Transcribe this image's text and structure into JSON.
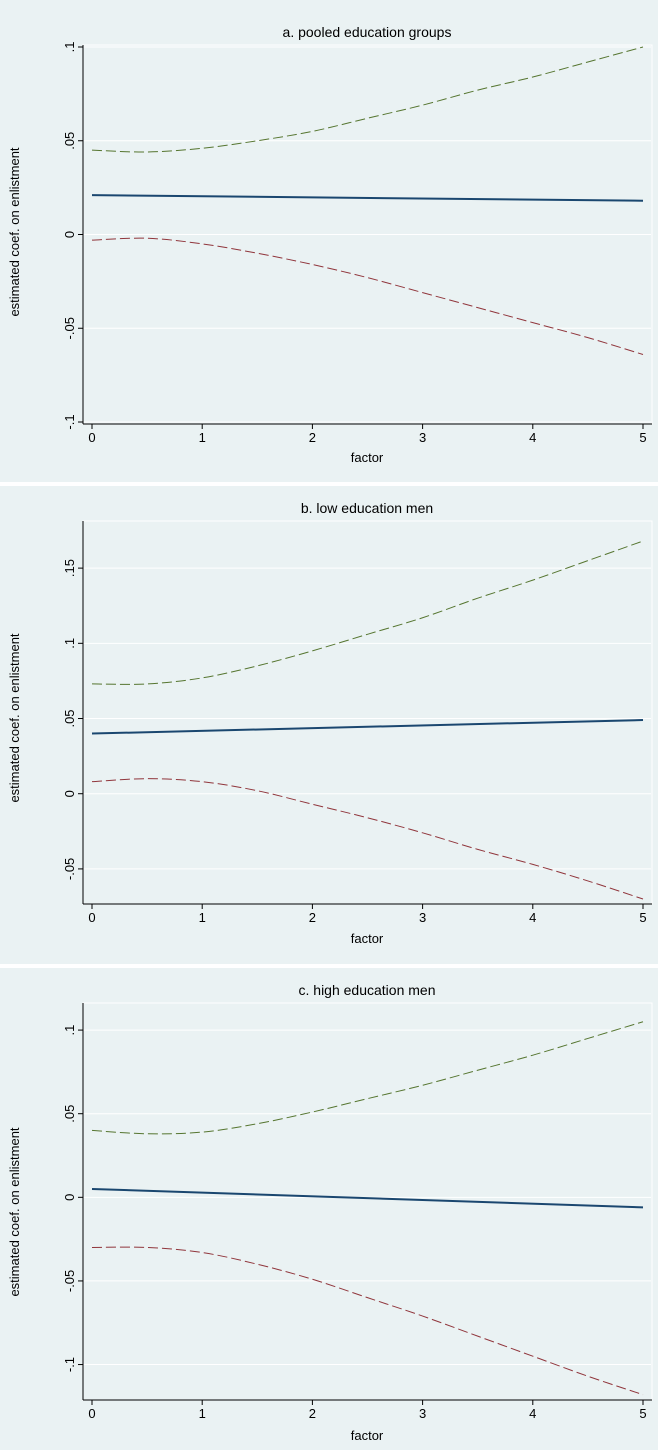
{
  "chart_data": [
    {
      "type": "line",
      "title": "a. pooled education groups",
      "xlabel": "factor",
      "ylabel": "estimated coef. on enlistment",
      "xlim": [
        0,
        5
      ],
      "ylim": [
        -0.1,
        0.1
      ],
      "xticks": [
        0,
        1,
        2,
        3,
        4,
        5
      ],
      "yticks": [
        -0.1,
        -0.05,
        0,
        0.05,
        0.1
      ],
      "ytick_labels": [
        "-.1",
        "-.05",
        "0",
        ".05",
        ".1"
      ],
      "grid": true,
      "colors": {
        "estimate": "#1a476f",
        "upper": "#55752f",
        "lower": "#90353b",
        "background": "#eaf2f3",
        "grid": "#ffffff"
      },
      "series": [
        {
          "role": "upper",
          "style": "dashed",
          "x": [
            0,
            0.5,
            1,
            1.5,
            2,
            2.5,
            3,
            3.5,
            4,
            4.5,
            5
          ],
          "values": [
            0.045,
            0.044,
            0.046,
            0.05,
            0.055,
            0.062,
            0.069,
            0.077,
            0.084,
            0.092,
            0.1
          ]
        },
        {
          "role": "estimate",
          "style": "solid",
          "x": [
            0,
            5
          ],
          "values": [
            0.021,
            0.018
          ]
        },
        {
          "role": "lower",
          "style": "dashed",
          "x": [
            0,
            0.5,
            1,
            1.5,
            2,
            2.5,
            3,
            3.5,
            4,
            4.5,
            5
          ],
          "values": [
            -0.003,
            -0.002,
            -0.005,
            -0.01,
            -0.016,
            -0.023,
            -0.031,
            -0.039,
            -0.047,
            -0.055,
            -0.064
          ]
        }
      ]
    },
    {
      "type": "line",
      "title": "b. low education men",
      "xlabel": "factor",
      "ylabel": "estimated coef. on enlistment",
      "xlim": [
        0,
        5
      ],
      "ylim": [
        -0.072,
        0.18
      ],
      "xticks": [
        0,
        1,
        2,
        3,
        4,
        5
      ],
      "yticks": [
        -0.05,
        0,
        0.05,
        0.1,
        0.15
      ],
      "ytick_labels": [
        "-.05",
        "0",
        ".05",
        ".1",
        ".15"
      ],
      "grid": true,
      "colors": {
        "estimate": "#1a476f",
        "upper": "#55752f",
        "lower": "#90353b",
        "background": "#eaf2f3",
        "grid": "#ffffff"
      },
      "series": [
        {
          "role": "upper",
          "style": "dashed",
          "x": [
            0,
            0.5,
            1,
            1.5,
            2,
            2.5,
            3,
            3.5,
            4,
            4.5,
            5
          ],
          "values": [
            0.073,
            0.073,
            0.077,
            0.085,
            0.095,
            0.106,
            0.117,
            0.13,
            0.142,
            0.155,
            0.168
          ]
        },
        {
          "role": "estimate",
          "style": "solid",
          "x": [
            0,
            5
          ],
          "values": [
            0.04,
            0.049
          ]
        },
        {
          "role": "lower",
          "style": "dashed",
          "x": [
            0,
            0.5,
            1,
            1.5,
            2,
            2.5,
            3,
            3.5,
            4,
            4.5,
            5
          ],
          "values": [
            0.008,
            0.01,
            0.008,
            0.002,
            -0.007,
            -0.016,
            -0.026,
            -0.037,
            -0.047,
            -0.058,
            -0.07
          ]
        }
      ]
    },
    {
      "type": "line",
      "title": "c. high education men",
      "xlabel": "factor",
      "ylabel": "estimated coef. on enlistment",
      "xlim": [
        0,
        5
      ],
      "ylim": [
        -0.12,
        0.115
      ],
      "xticks": [
        0,
        1,
        2,
        3,
        4,
        5
      ],
      "yticks": [
        -0.1,
        -0.05,
        0,
        0.05,
        0.1
      ],
      "ytick_labels": [
        "-.1",
        "-.05",
        "0",
        ".05",
        ".1"
      ],
      "grid": true,
      "colors": {
        "estimate": "#1a476f",
        "upper": "#55752f",
        "lower": "#90353b",
        "background": "#eaf2f3",
        "grid": "#ffffff"
      },
      "series": [
        {
          "role": "upper",
          "style": "dashed",
          "x": [
            0,
            0.5,
            1,
            1.5,
            2,
            2.5,
            3,
            3.5,
            4,
            4.5,
            5
          ],
          "values": [
            0.04,
            0.038,
            0.039,
            0.044,
            0.051,
            0.059,
            0.067,
            0.076,
            0.085,
            0.095,
            0.105
          ]
        },
        {
          "role": "estimate",
          "style": "solid",
          "x": [
            0,
            5
          ],
          "values": [
            0.005,
            -0.006
          ]
        },
        {
          "role": "lower",
          "style": "dashed",
          "x": [
            0,
            0.5,
            1,
            1.5,
            2,
            2.5,
            3,
            3.5,
            4,
            4.5,
            5
          ],
          "values": [
            -0.03,
            -0.03,
            -0.033,
            -0.04,
            -0.049,
            -0.06,
            -0.071,
            -0.083,
            -0.095,
            -0.107,
            -0.118
          ]
        }
      ]
    }
  ]
}
